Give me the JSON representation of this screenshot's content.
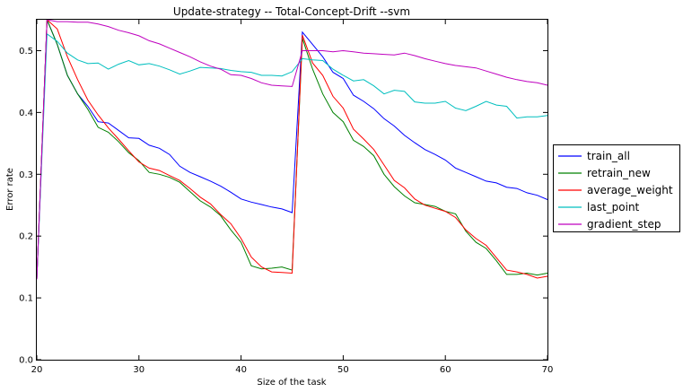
{
  "chart_data": {
    "type": "line",
    "title": "Update-strategy -- Total-Concept-Drift --svm",
    "xlabel": "Size of the task",
    "ylabel": "Error rate",
    "xlim": [
      20,
      70
    ],
    "ylim": [
      0.0,
      0.55
    ],
    "xticks": [
      20,
      30,
      40,
      50,
      60,
      70
    ],
    "xtick_labels": [
      "20",
      "30",
      "40",
      "50",
      "60",
      "70"
    ],
    "yticks": [
      0.0,
      0.1,
      0.2,
      0.3,
      0.4,
      0.5
    ],
    "ytick_labels": [
      "0.0",
      "0.1",
      "0.2",
      "0.3",
      "0.4",
      "0.5"
    ],
    "grid": false,
    "legend_position": "outside-right",
    "x": [
      20,
      21,
      22,
      23,
      24,
      25,
      26,
      27,
      28,
      29,
      30,
      31,
      32,
      33,
      34,
      35,
      36,
      37,
      38,
      39,
      40,
      41,
      42,
      43,
      44,
      45,
      46,
      47,
      48,
      49,
      50,
      51,
      52,
      53,
      54,
      55,
      56,
      57,
      58,
      59,
      60,
      61,
      62,
      63,
      64,
      65,
      66,
      67,
      68,
      69,
      70
    ],
    "series": [
      {
        "name": "train_all",
        "color": "#0000ff",
        "values": [
          0.13,
          0.55,
          0.51,
          0.46,
          0.43,
          0.41,
          0.385,
          0.383,
          0.371,
          0.359,
          0.358,
          0.347,
          0.342,
          0.332,
          0.313,
          0.303,
          0.296,
          0.289,
          0.281,
          0.271,
          0.26,
          0.255,
          0.251,
          0.247,
          0.244,
          0.238,
          0.53,
          0.51,
          0.49,
          0.465,
          0.455,
          0.428,
          0.418,
          0.406,
          0.39,
          0.378,
          0.363,
          0.351,
          0.34,
          0.332,
          0.323,
          0.31,
          0.303,
          0.296,
          0.289,
          0.286,
          0.279,
          0.277,
          0.27,
          0.266,
          0.259
        ]
      },
      {
        "name": "retrain_new",
        "color": "#008000",
        "values": [
          0.13,
          0.55,
          0.51,
          0.46,
          0.43,
          0.405,
          0.376,
          0.368,
          0.353,
          0.335,
          0.322,
          0.303,
          0.3,
          0.295,
          0.287,
          0.272,
          0.257,
          0.247,
          0.233,
          0.21,
          0.19,
          0.152,
          0.147,
          0.148,
          0.15,
          0.145,
          0.52,
          0.47,
          0.43,
          0.4,
          0.385,
          0.355,
          0.345,
          0.33,
          0.3,
          0.28,
          0.265,
          0.254,
          0.251,
          0.248,
          0.24,
          0.236,
          0.208,
          0.19,
          0.18,
          0.16,
          0.138,
          0.138,
          0.14,
          0.137,
          0.14
        ]
      },
      {
        "name": "average_weight",
        "color": "#ff0000",
        "values": [
          0.13,
          0.55,
          0.535,
          0.49,
          0.453,
          0.42,
          0.396,
          0.375,
          0.357,
          0.338,
          0.32,
          0.31,
          0.306,
          0.298,
          0.29,
          0.277,
          0.263,
          0.252,
          0.235,
          0.22,
          0.196,
          0.166,
          0.15,
          0.142,
          0.141,
          0.14,
          0.525,
          0.48,
          0.46,
          0.426,
          0.407,
          0.373,
          0.357,
          0.34,
          0.315,
          0.29,
          0.278,
          0.26,
          0.25,
          0.245,
          0.24,
          0.23,
          0.21,
          0.196,
          0.185,
          0.165,
          0.145,
          0.142,
          0.138,
          0.132,
          0.135
        ]
      },
      {
        "name": "last_point",
        "color": "#00bfbf",
        "values": [
          0.13,
          0.527,
          0.515,
          0.496,
          0.485,
          0.479,
          0.48,
          0.47,
          0.478,
          0.484,
          0.477,
          0.479,
          0.475,
          0.469,
          0.462,
          0.467,
          0.473,
          0.472,
          0.471,
          0.468,
          0.466,
          0.465,
          0.46,
          0.46,
          0.459,
          0.466,
          0.487,
          0.485,
          0.484,
          0.47,
          0.46,
          0.451,
          0.453,
          0.443,
          0.43,
          0.436,
          0.434,
          0.417,
          0.415,
          0.415,
          0.418,
          0.407,
          0.403,
          0.41,
          0.418,
          0.412,
          0.41,
          0.391,
          0.393,
          0.393,
          0.395
        ]
      },
      {
        "name": "gradient_step",
        "color": "#bf00bf",
        "values": [
          0.13,
          0.55,
          0.547,
          0.547,
          0.546,
          0.546,
          0.543,
          0.539,
          0.533,
          0.529,
          0.524,
          0.516,
          0.511,
          0.504,
          0.497,
          0.49,
          0.482,
          0.475,
          0.47,
          0.461,
          0.46,
          0.455,
          0.448,
          0.444,
          0.443,
          0.442,
          0.5,
          0.5,
          0.5,
          0.498,
          0.5,
          0.498,
          0.496,
          0.495,
          0.494,
          0.493,
          0.496,
          0.492,
          0.487,
          0.483,
          0.479,
          0.476,
          0.474,
          0.472,
          0.467,
          0.462,
          0.457,
          0.453,
          0.45,
          0.448,
          0.444
        ]
      }
    ]
  }
}
